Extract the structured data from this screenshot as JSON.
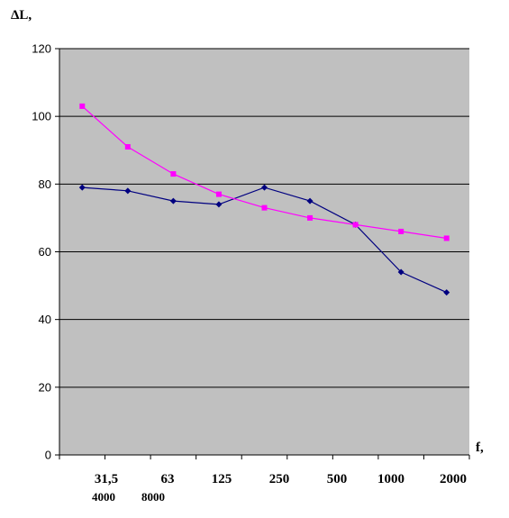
{
  "chart_data": {
    "type": "line",
    "title": "",
    "ylabel": "ΔL,",
    "xlabel": "f,",
    "ylim": [
      0,
      120
    ],
    "yticks": [
      0,
      20,
      40,
      60,
      80,
      100,
      120
    ],
    "grid": true,
    "legend": "none",
    "x_tick_labels": [
      "31,5",
      "63",
      "125",
      "250",
      "500",
      "1000",
      "2000"
    ],
    "x_tick_labels_extra": [
      "4000",
      "8000"
    ],
    "series": [
      {
        "color": "#000080",
        "marker": "diamond",
        "values": [
          79,
          78,
          75,
          74,
          79,
          75,
          68,
          54,
          48
        ]
      },
      {
        "color": "#ff00ff",
        "marker": "square",
        "values": [
          103,
          91,
          83,
          77,
          73,
          70,
          68,
          66,
          64
        ]
      }
    ],
    "colors": {
      "plot_background": "#c0c0c0",
      "gridline": "#000000",
      "axis": "#000000"
    }
  }
}
